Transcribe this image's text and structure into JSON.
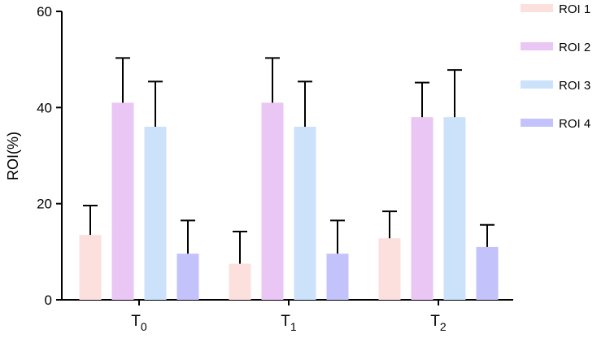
{
  "chart_data": {
    "type": "bar",
    "title": "",
    "xlabel": "",
    "ylabel": "ROI(%)",
    "ylim": [
      0,
      60
    ],
    "yticks": [
      "0",
      "20",
      "40",
      "60"
    ],
    "categories": [
      {
        "base": "T",
        "sub": "0"
      },
      {
        "base": "T",
        "sub": "1"
      },
      {
        "base": "T",
        "sub": "2"
      }
    ],
    "series": [
      {
        "name": "ROI 1",
        "color": "#FCE0DE",
        "values": [
          13.5,
          7.5,
          12.8
        ],
        "errors": [
          6.1,
          6.7,
          5.6
        ]
      },
      {
        "name": "ROI 2",
        "color": "#E9C6F4",
        "values": [
          41.0,
          41.0,
          38.0
        ],
        "errors": [
          9.3,
          9.3,
          7.2
        ]
      },
      {
        "name": "ROI 3",
        "color": "#CCE2FB",
        "values": [
          36.0,
          36.0,
          38.0
        ],
        "errors": [
          9.4,
          9.4,
          9.8
        ]
      },
      {
        "name": "ROI 4",
        "color": "#C4C2FA",
        "values": [
          9.6,
          9.6,
          11.0
        ],
        "errors": [
          6.9,
          6.9,
          4.6
        ]
      }
    ],
    "legend_position": "top-right"
  }
}
